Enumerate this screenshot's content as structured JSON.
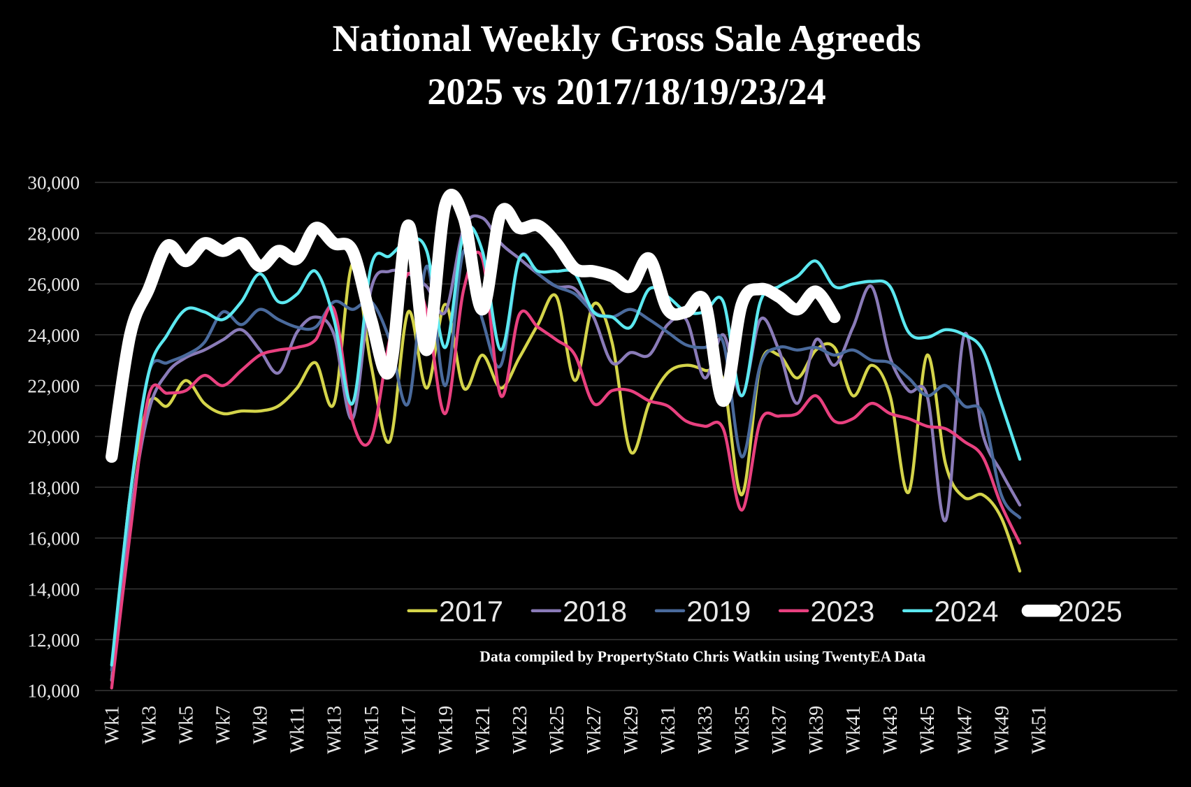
{
  "chart_data": {
    "type": "line",
    "title": "National Weekly Gross Sale Agreeds",
    "subtitle": "2025 vs 2017/18/19/23/24",
    "note": "Data compiled by PropertyStato Chris Watkin using TwentyEA Data",
    "categories": [
      "Wk1",
      null,
      "Wk3",
      null,
      "Wk5",
      null,
      "Wk7",
      null,
      "Wk9",
      null,
      "Wk11",
      null,
      "Wk13",
      null,
      "Wk15",
      null,
      "Wk17",
      null,
      "Wk19",
      null,
      "Wk21",
      null,
      "Wk23",
      null,
      "Wk25",
      null,
      "Wk27",
      null,
      "Wk29",
      null,
      "Wk31",
      null,
      "Wk33",
      null,
      "Wk35",
      null,
      "Wk37",
      null,
      "Wk39",
      null,
      "Wk41",
      null,
      "Wk43",
      null,
      "Wk45",
      null,
      "Wk47",
      null,
      "Wk49",
      null,
      "Wk51"
    ],
    "ylim": [
      10000,
      30000
    ],
    "yticks": [
      {
        "value": 10000,
        "label": "10,000"
      },
      {
        "value": 12000,
        "label": "12,000"
      },
      {
        "value": 14000,
        "label": "14,000"
      },
      {
        "value": 16000,
        "label": "16,000"
      },
      {
        "value": 18000,
        "label": "18,000"
      },
      {
        "value": 20000,
        "label": "20,000"
      },
      {
        "value": 22000,
        "label": "22,000"
      },
      {
        "value": 24000,
        "label": "24,000"
      },
      {
        "value": 26000,
        "label": "26,000"
      },
      {
        "value": 28000,
        "label": "28,000"
      },
      {
        "value": 30000,
        "label": "30,000"
      }
    ],
    "grid": true,
    "legend": "bottom-right",
    "series": [
      {
        "name": "2017",
        "color": "#d4d44a",
        "values": [
          10400,
          17700,
          21300,
          21200,
          22200,
          21300,
          20900,
          21000,
          21000,
          21200,
          21900,
          22900,
          21300,
          26800,
          22800,
          19800,
          24900,
          21900,
          25200,
          21900,
          23200,
          21900,
          23100,
          24400,
          25500,
          22200,
          25200,
          23700,
          19400,
          21300,
          22500,
          22800,
          22600,
          22200,
          17700,
          22800,
          23200,
          22300,
          23400,
          23500,
          21600,
          22800,
          21600,
          17800,
          23200,
          18900,
          17600,
          17700,
          16800,
          14700,
          null
        ]
      },
      {
        "name": "2018",
        "color": "#8a7bb8",
        "values": [
          10400,
          16800,
          21000,
          22500,
          23100,
          23400,
          23800,
          24200,
          23400,
          22500,
          24100,
          24700,
          24000,
          20700,
          25800,
          26500,
          26400,
          25900,
          24900,
          28200,
          28600,
          27600,
          27000,
          26400,
          25900,
          25800,
          24700,
          22900,
          23300,
          23200,
          24400,
          24600,
          22300,
          24000,
          21600,
          24600,
          23400,
          21300,
          23800,
          22800,
          24300,
          25900,
          23100,
          21800,
          21600,
          16700,
          24000,
          20100,
          18600,
          17300,
          null
        ]
      },
      {
        "name": "2019",
        "color": "#4a6a9c",
        "values": [
          10800,
          17700,
          22500,
          22900,
          23200,
          23700,
          24900,
          24400,
          25000,
          24600,
          24300,
          24300,
          25300,
          25000,
          25300,
          23800,
          21300,
          26700,
          22000,
          27300,
          24600,
          22800,
          27000,
          26400,
          25900,
          25600,
          24900,
          24700,
          25000,
          24600,
          24100,
          23600,
          23500,
          23700,
          19200,
          22800,
          23500,
          23400,
          23500,
          23200,
          23400,
          23000,
          22900,
          22300,
          21600,
          22000,
          21200,
          20900,
          17700,
          16800,
          null
        ]
      },
      {
        "name": "2023",
        "color": "#e8407f",
        "values": [
          10100,
          16200,
          21600,
          21700,
          21800,
          22400,
          22000,
          22600,
          23200,
          23400,
          23500,
          23800,
          25000,
          20600,
          19900,
          23800,
          26400,
          24900,
          20900,
          25800,
          27000,
          21600,
          24800,
          24300,
          23800,
          23200,
          21300,
          21800,
          21800,
          21400,
          21200,
          20600,
          20400,
          20300,
          17100,
          20600,
          20800,
          20900,
          21600,
          20600,
          20700,
          21300,
          20900,
          20700,
          20400,
          20300,
          19800,
          19200,
          17300,
          15800,
          null
        ]
      },
      {
        "name": "2024",
        "color": "#5ce8f0",
        "values": [
          11000,
          17700,
          22500,
          24000,
          25000,
          24900,
          24600,
          25300,
          26400,
          25300,
          25600,
          26500,
          24600,
          21300,
          26700,
          27100,
          27700,
          27300,
          23500,
          28000,
          27300,
          23400,
          27000,
          26500,
          26500,
          26400,
          24900,
          24700,
          24300,
          25800,
          25500,
          24900,
          24900,
          25300,
          21600,
          25300,
          25900,
          26300,
          26900,
          25900,
          26000,
          26100,
          25900,
          24100,
          23900,
          24200,
          24000,
          23400,
          21300,
          19100,
          null
        ]
      },
      {
        "name": "2025",
        "color": "#ffffff",
        "values": [
          19200,
          24000,
          25800,
          27500,
          26900,
          27600,
          27300,
          27600,
          26700,
          27300,
          27000,
          28200,
          27600,
          27300,
          24600,
          22600,
          28300,
          23400,
          29100,
          28600,
          25000,
          28800,
          28200,
          28300,
          27600,
          26600,
          26500,
          26300,
          25900,
          27000,
          25000,
          24900,
          25300,
          21400,
          25200,
          25800,
          25500,
          25000,
          25700,
          24700,
          null,
          null,
          null,
          null,
          null,
          null,
          null,
          null,
          null,
          null,
          null
        ]
      }
    ]
  }
}
